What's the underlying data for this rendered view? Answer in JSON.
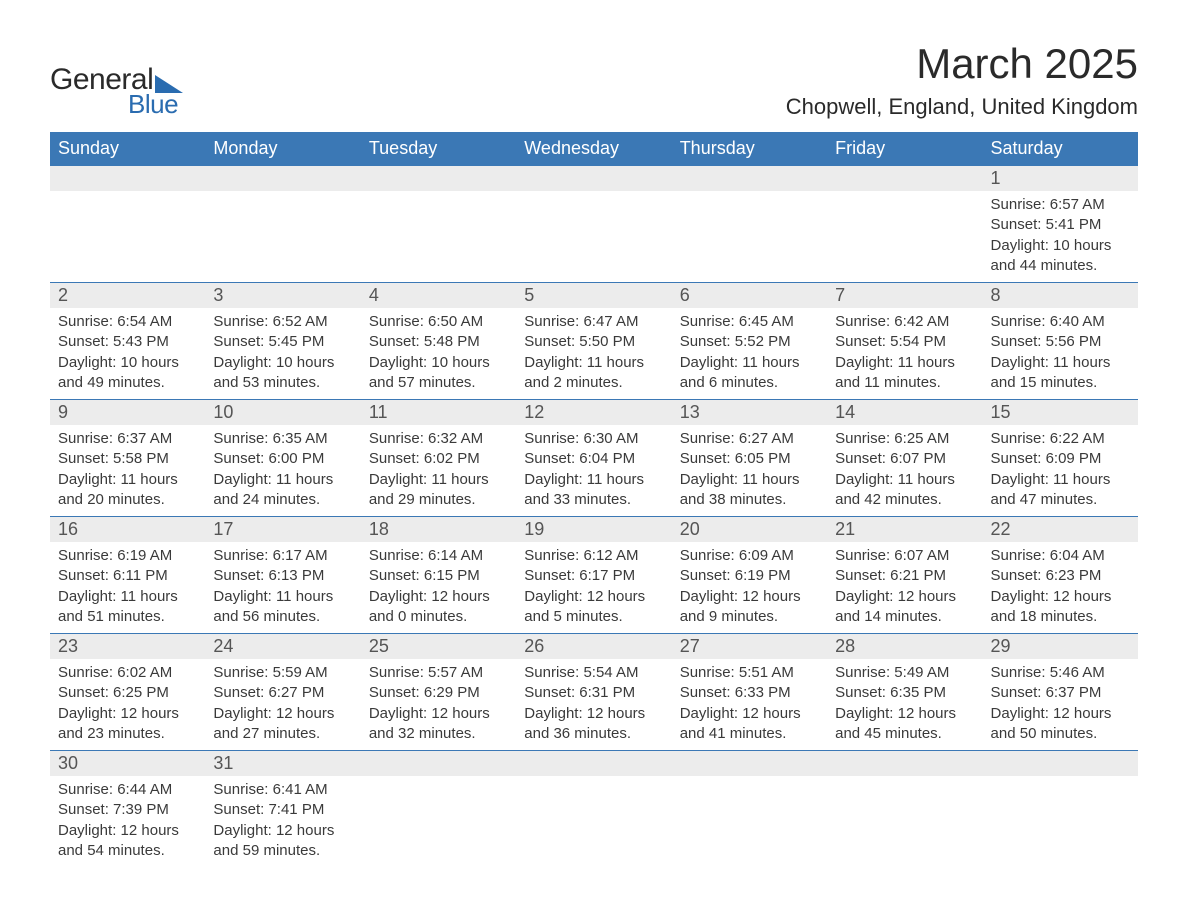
{
  "logo": {
    "line1": "General",
    "line2": "Blue"
  },
  "title": "March 2025",
  "location": "Chopwell, England, United Kingdom",
  "colors": {
    "header_bg": "#3b78b5",
    "header_text": "#ffffff",
    "daynum_bg": "#ececec",
    "daynum_text": "#555555",
    "body_text": "#3a3a3a",
    "row_border": "#3b78b5",
    "logo_accent": "#2a6cb0"
  },
  "typography": {
    "title_fontsize": 42,
    "location_fontsize": 22,
    "weekday_fontsize": 18,
    "daynum_fontsize": 18,
    "body_fontsize": 15
  },
  "weekdays": [
    "Sunday",
    "Monday",
    "Tuesday",
    "Wednesday",
    "Thursday",
    "Friday",
    "Saturday"
  ],
  "weeks": [
    [
      null,
      null,
      null,
      null,
      null,
      null,
      {
        "n": "1",
        "sunrise": "6:57 AM",
        "sunset": "5:41 PM",
        "daylight": "10 hours and 44 minutes."
      }
    ],
    [
      {
        "n": "2",
        "sunrise": "6:54 AM",
        "sunset": "5:43 PM",
        "daylight": "10 hours and 49 minutes."
      },
      {
        "n": "3",
        "sunrise": "6:52 AM",
        "sunset": "5:45 PM",
        "daylight": "10 hours and 53 minutes."
      },
      {
        "n": "4",
        "sunrise": "6:50 AM",
        "sunset": "5:48 PM",
        "daylight": "10 hours and 57 minutes."
      },
      {
        "n": "5",
        "sunrise": "6:47 AM",
        "sunset": "5:50 PM",
        "daylight": "11 hours and 2 minutes."
      },
      {
        "n": "6",
        "sunrise": "6:45 AM",
        "sunset": "5:52 PM",
        "daylight": "11 hours and 6 minutes."
      },
      {
        "n": "7",
        "sunrise": "6:42 AM",
        "sunset": "5:54 PM",
        "daylight": "11 hours and 11 minutes."
      },
      {
        "n": "8",
        "sunrise": "6:40 AM",
        "sunset": "5:56 PM",
        "daylight": "11 hours and 15 minutes."
      }
    ],
    [
      {
        "n": "9",
        "sunrise": "6:37 AM",
        "sunset": "5:58 PM",
        "daylight": "11 hours and 20 minutes."
      },
      {
        "n": "10",
        "sunrise": "6:35 AM",
        "sunset": "6:00 PM",
        "daylight": "11 hours and 24 minutes."
      },
      {
        "n": "11",
        "sunrise": "6:32 AM",
        "sunset": "6:02 PM",
        "daylight": "11 hours and 29 minutes."
      },
      {
        "n": "12",
        "sunrise": "6:30 AM",
        "sunset": "6:04 PM",
        "daylight": "11 hours and 33 minutes."
      },
      {
        "n": "13",
        "sunrise": "6:27 AM",
        "sunset": "6:05 PM",
        "daylight": "11 hours and 38 minutes."
      },
      {
        "n": "14",
        "sunrise": "6:25 AM",
        "sunset": "6:07 PM",
        "daylight": "11 hours and 42 minutes."
      },
      {
        "n": "15",
        "sunrise": "6:22 AM",
        "sunset": "6:09 PM",
        "daylight": "11 hours and 47 minutes."
      }
    ],
    [
      {
        "n": "16",
        "sunrise": "6:19 AM",
        "sunset": "6:11 PM",
        "daylight": "11 hours and 51 minutes."
      },
      {
        "n": "17",
        "sunrise": "6:17 AM",
        "sunset": "6:13 PM",
        "daylight": "11 hours and 56 minutes."
      },
      {
        "n": "18",
        "sunrise": "6:14 AM",
        "sunset": "6:15 PM",
        "daylight": "12 hours and 0 minutes."
      },
      {
        "n": "19",
        "sunrise": "6:12 AM",
        "sunset": "6:17 PM",
        "daylight": "12 hours and 5 minutes."
      },
      {
        "n": "20",
        "sunrise": "6:09 AM",
        "sunset": "6:19 PM",
        "daylight": "12 hours and 9 minutes."
      },
      {
        "n": "21",
        "sunrise": "6:07 AM",
        "sunset": "6:21 PM",
        "daylight": "12 hours and 14 minutes."
      },
      {
        "n": "22",
        "sunrise": "6:04 AM",
        "sunset": "6:23 PM",
        "daylight": "12 hours and 18 minutes."
      }
    ],
    [
      {
        "n": "23",
        "sunrise": "6:02 AM",
        "sunset": "6:25 PM",
        "daylight": "12 hours and 23 minutes."
      },
      {
        "n": "24",
        "sunrise": "5:59 AM",
        "sunset": "6:27 PM",
        "daylight": "12 hours and 27 minutes."
      },
      {
        "n": "25",
        "sunrise": "5:57 AM",
        "sunset": "6:29 PM",
        "daylight": "12 hours and 32 minutes."
      },
      {
        "n": "26",
        "sunrise": "5:54 AM",
        "sunset": "6:31 PM",
        "daylight": "12 hours and 36 minutes."
      },
      {
        "n": "27",
        "sunrise": "5:51 AM",
        "sunset": "6:33 PM",
        "daylight": "12 hours and 41 minutes."
      },
      {
        "n": "28",
        "sunrise": "5:49 AM",
        "sunset": "6:35 PM",
        "daylight": "12 hours and 45 minutes."
      },
      {
        "n": "29",
        "sunrise": "5:46 AM",
        "sunset": "6:37 PM",
        "daylight": "12 hours and 50 minutes."
      }
    ],
    [
      {
        "n": "30",
        "sunrise": "6:44 AM",
        "sunset": "7:39 PM",
        "daylight": "12 hours and 54 minutes."
      },
      {
        "n": "31",
        "sunrise": "6:41 AM",
        "sunset": "7:41 PM",
        "daylight": "12 hours and 59 minutes."
      },
      null,
      null,
      null,
      null,
      null
    ]
  ],
  "labels": {
    "sunrise": "Sunrise: ",
    "sunset": "Sunset: ",
    "daylight": "Daylight: "
  }
}
